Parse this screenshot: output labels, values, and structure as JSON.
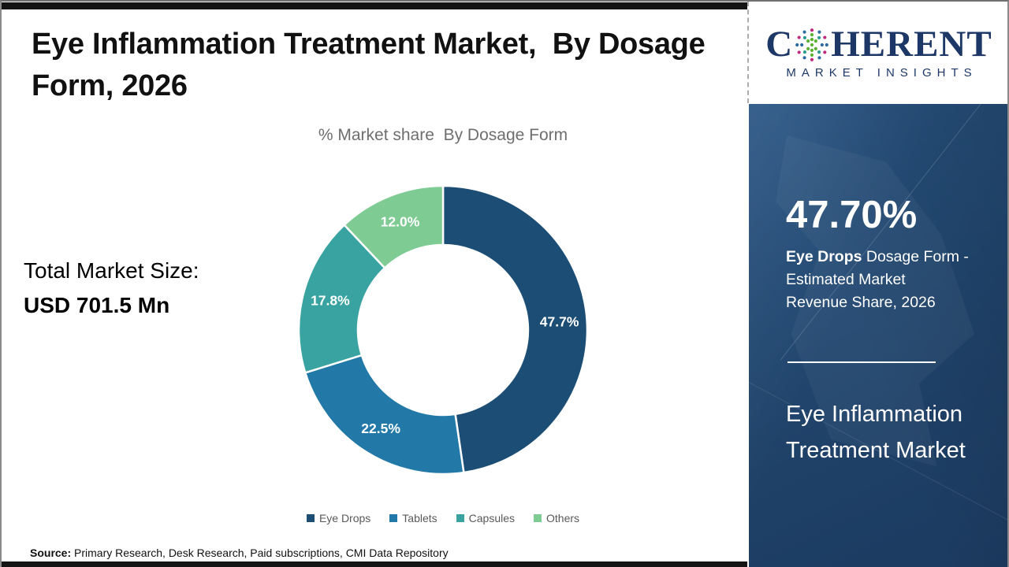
{
  "header": {
    "title": "Eye Inflammation Treatment Market,  By Dosage Form, 2026"
  },
  "logo": {
    "name_prefix": "C",
    "name_suffix": "HERENT",
    "tagline": "MARKET INSIGHTS",
    "o_icon": "dot-globe-icon",
    "brand_color": "#1d3867",
    "dot_colors": [
      "#bf2a7c",
      "#2c6ca3",
      "#5cb233",
      "#2a9d8f"
    ]
  },
  "summary": {
    "total_label": "Total Market Size:",
    "total_value": "USD 701.5 Mn"
  },
  "chart_data": {
    "type": "pie",
    "subtype": "donut",
    "title": "% Market share  By Dosage Form",
    "categories": [
      "Eye Drops",
      "Tablets",
      "Capsules",
      "Others"
    ],
    "values": [
      47.7,
      22.5,
      17.8,
      12.0
    ],
    "labels": [
      "47.7%",
      "22.5%",
      "17.8%",
      "12.0%"
    ],
    "colors": [
      "#1c4e75",
      "#2279a8",
      "#38a3a0",
      "#7ecb94"
    ],
    "start_angle_deg": 0,
    "direction": "clockwise",
    "hole_ratio": 0.59,
    "label_color": "#ffffff",
    "legend_position": "bottom"
  },
  "side_panel": {
    "background_color": "#1f4168",
    "highlight_value": "47.70%",
    "highlight_segment": "Eye Drops",
    "highlight_line1_rest": " Dosage Form -",
    "highlight_line2": "Estimated Market",
    "highlight_line3": "Revenue Share, 2026",
    "market_line1": "Eye Inflammation",
    "market_line2": "Treatment Market"
  },
  "footer": {
    "source_label": "Source:",
    "source_text": " Primary Research, Desk Research, Paid subscriptions, CMI Data Repository"
  }
}
